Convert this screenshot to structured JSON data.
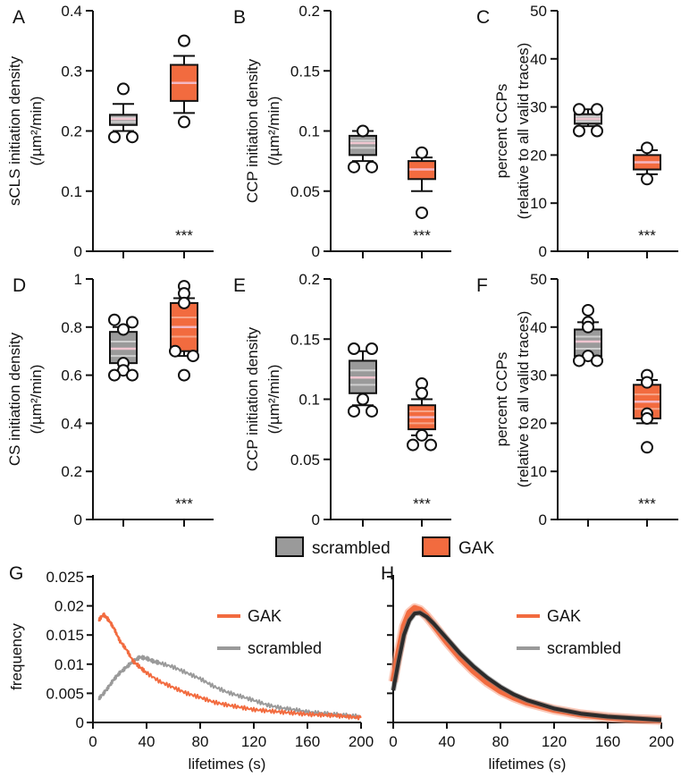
{
  "colors": {
    "scrambled_fill": "#9a9a9a",
    "scrambled_dark": "#2b2b2b",
    "scrambled_light": "#cfcfcf",
    "gak_fill": "#f26b3f",
    "gak_light": "#f8a58a",
    "gak_median": "#f4b8c3",
    "scr_median": "#f0c6d0"
  },
  "legend": {
    "scrambled": "scrambled",
    "gak": "GAK"
  },
  "chart_data": [
    {
      "id": "A",
      "type": "box",
      "panel_label": "A",
      "ylabel_lines": [
        "sCLS initiation density",
        "(/µm²/min)"
      ],
      "ylim": [
        0,
        0.4
      ],
      "yticks": [
        0,
        0.1,
        0.2,
        0.3,
        0.4
      ],
      "ytick_labels": [
        "0",
        "0.1",
        "0.2",
        "0.3",
        "0.4"
      ],
      "significance": "***",
      "groups": [
        {
          "name": "scrambled",
          "q1": 0.21,
          "median": 0.22,
          "q3": 0.227,
          "whisker_low": 0.2,
          "whisker_high": 0.245,
          "outliers": [
            0.27,
            0.19,
            0.19
          ],
          "inner_lines": [
            0.215,
            0.222
          ]
        },
        {
          "name": "GAK",
          "q1": 0.25,
          "median": 0.28,
          "q3": 0.31,
          "whisker_low": 0.23,
          "whisker_high": 0.325,
          "outliers": [
            0.35,
            0.215
          ],
          "inner_lines": []
        }
      ]
    },
    {
      "id": "B",
      "type": "box",
      "panel_label": "B",
      "ylabel_lines": [
        "CCP initiation density",
        "(/µm²/min)"
      ],
      "ylim": [
        0,
        0.2
      ],
      "yticks": [
        0,
        0.05,
        0.1,
        0.15,
        0.2
      ],
      "ytick_labels": [
        "0",
        "0.05",
        "0.1",
        "0.15",
        "0.2"
      ],
      "significance": "***",
      "groups": [
        {
          "name": "scrambled",
          "q1": 0.08,
          "median": 0.09,
          "q3": 0.096,
          "whisker_low": 0.075,
          "whisker_high": 0.1,
          "outliers": [
            0.1,
            0.07,
            0.07
          ],
          "inner_lines": [
            0.086,
            0.092
          ]
        },
        {
          "name": "GAK",
          "q1": 0.06,
          "median": 0.068,
          "q3": 0.075,
          "whisker_low": 0.05,
          "whisker_high": 0.078,
          "outliers": [
            0.082,
            0.032
          ],
          "inner_lines": []
        }
      ]
    },
    {
      "id": "C",
      "type": "box",
      "panel_label": "C",
      "ylabel_lines": [
        "percent CCPs",
        "(relative to all valid traces)"
      ],
      "ylim": [
        0,
        50
      ],
      "yticks": [
        0,
        10,
        20,
        30,
        40,
        50
      ],
      "ytick_labels": [
        "0",
        "10",
        "20",
        "30",
        "40",
        "50"
      ],
      "significance": "***",
      "groups": [
        {
          "name": "scrambled",
          "q1": 26.5,
          "median": 27.5,
          "q3": 28.5,
          "whisker_low": 26,
          "whisker_high": 29.5,
          "outliers": [
            29.5,
            29.5,
            25,
            25
          ],
          "inner_lines": [
            27,
            28
          ]
        },
        {
          "name": "GAK",
          "q1": 17,
          "median": 18.5,
          "q3": 20,
          "whisker_low": 16,
          "whisker_high": 21,
          "outliers": [
            21.5,
            15
          ],
          "inner_lines": []
        }
      ]
    },
    {
      "id": "D",
      "type": "box",
      "panel_label": "D",
      "ylabel_lines": [
        "CS initiation density",
        "(/µm²/min)"
      ],
      "ylim": [
        0,
        1
      ],
      "yticks": [
        0,
        0.2,
        0.4,
        0.6,
        0.8,
        1
      ],
      "ytick_labels": [
        "0",
        "0.2",
        "0.4",
        "0.6",
        "0.8",
        "1"
      ],
      "significance": "***",
      "groups": [
        {
          "name": "scrambled",
          "q1": 0.65,
          "median": 0.71,
          "q3": 0.78,
          "whisker_low": 0.61,
          "whisker_high": 0.8,
          "outliers": [
            0.83,
            0.82,
            0.79,
            0.65,
            0.62,
            0.6,
            0.6
          ],
          "inner_lines": [
            0.68,
            0.74
          ]
        },
        {
          "name": "GAK",
          "q1": 0.7,
          "median": 0.8,
          "q3": 0.9,
          "whisker_low": 0.68,
          "whisker_high": 0.92,
          "outliers": [
            0.97,
            0.94,
            0.9,
            0.7,
            0.68,
            0.6
          ],
          "inner_lines": [
            0.76,
            0.84
          ]
        }
      ]
    },
    {
      "id": "E",
      "type": "box",
      "panel_label": "E",
      "ylabel_lines": [
        "CCP initiation density",
        "(/µm²/min)"
      ],
      "ylim": [
        0,
        0.2
      ],
      "yticks": [
        0,
        0.05,
        0.1,
        0.15,
        0.2
      ],
      "ytick_labels": [
        "0",
        "0.05",
        "0.1",
        "0.15",
        "0.2"
      ],
      "significance": "***",
      "groups": [
        {
          "name": "scrambled",
          "q1": 0.105,
          "median": 0.118,
          "q3": 0.132,
          "whisker_low": 0.095,
          "whisker_high": 0.14,
          "outliers": [
            0.142,
            0.142,
            0.1,
            0.09,
            0.09
          ],
          "inner_lines": [
            0.112,
            0.124
          ]
        },
        {
          "name": "GAK",
          "q1": 0.075,
          "median": 0.085,
          "q3": 0.095,
          "whisker_low": 0.07,
          "whisker_high": 0.1,
          "outliers": [
            0.113,
            0.105,
            0.07,
            0.062,
            0.062
          ],
          "inner_lines": [
            0.08,
            0.09
          ]
        }
      ]
    },
    {
      "id": "F",
      "type": "box",
      "panel_label": "F",
      "ylabel_lines": [
        "percent CCPs",
        "(relative to all valid traces)"
      ],
      "ylim": [
        0,
        50
      ],
      "yticks": [
        0,
        10,
        20,
        30,
        40,
        50
      ],
      "ytick_labels": [
        "0",
        "10",
        "20",
        "30",
        "40",
        "50"
      ],
      "significance": "***",
      "groups": [
        {
          "name": "scrambled",
          "q1": 34,
          "median": 37,
          "q3": 39.5,
          "whisker_low": 33,
          "whisker_high": 41,
          "outliers": [
            43.5,
            41,
            40,
            34,
            33,
            33
          ],
          "inner_lines": [
            35.5,
            38
          ]
        },
        {
          "name": "GAK",
          "q1": 21,
          "median": 24.5,
          "q3": 28,
          "whisker_low": 20,
          "whisker_high": 29,
          "outliers": [
            30,
            28.5,
            22,
            21,
            15
          ],
          "inner_lines": [
            23,
            26
          ]
        }
      ]
    },
    {
      "id": "G",
      "type": "line",
      "panel_label": "G",
      "ylabel": "frequency",
      "xlabel": "lifetimes (s)",
      "xlim": [
        0,
        200
      ],
      "ylim": [
        0,
        0.025
      ],
      "xticks": [
        0,
        40,
        80,
        120,
        160,
        200
      ],
      "xtick_labels": [
        "0",
        "40",
        "80",
        "120",
        "160",
        "200"
      ],
      "yticks": [
        0,
        0.005,
        0.01,
        0.015,
        0.02,
        0.025
      ],
      "ytick_labels": [
        "0",
        "0.005",
        "0.01",
        "0.015",
        "0.02",
        "0.025"
      ],
      "legend": [
        "GAK",
        "scrambled"
      ],
      "series": [
        {
          "name": "GAK",
          "x": [
            4,
            8,
            12,
            16,
            20,
            25,
            30,
            35,
            40,
            50,
            60,
            70,
            80,
            90,
            100,
            110,
            120,
            130,
            140,
            150,
            160,
            170,
            180,
            190,
            200
          ],
          "y": [
            0.0175,
            0.0185,
            0.0175,
            0.016,
            0.014,
            0.0125,
            0.0105,
            0.0095,
            0.0085,
            0.007,
            0.006,
            0.005,
            0.0043,
            0.0035,
            0.003,
            0.0026,
            0.0022,
            0.002,
            0.0018,
            0.0016,
            0.0014,
            0.0013,
            0.0012,
            0.001,
            0.0008
          ]
        },
        {
          "name": "scrambled",
          "x": [
            4,
            8,
            12,
            16,
            20,
            25,
            30,
            35,
            40,
            45,
            50,
            60,
            70,
            80,
            90,
            100,
            110,
            120,
            130,
            140,
            150,
            160,
            170,
            180,
            190,
            200
          ],
          "y": [
            0.004,
            0.005,
            0.0062,
            0.0075,
            0.0085,
            0.0095,
            0.0105,
            0.0112,
            0.011,
            0.0105,
            0.0102,
            0.0095,
            0.0085,
            0.0075,
            0.0062,
            0.0052,
            0.0045,
            0.0038,
            0.003,
            0.0025,
            0.0022,
            0.0018,
            0.0016,
            0.0014,
            0.0012,
            0.001
          ]
        }
      ]
    },
    {
      "id": "H",
      "type": "line",
      "panel_label": "H",
      "xlabel": "lifetimes (s)",
      "xlim": [
        0,
        200
      ],
      "ylim": [
        0,
        0.025
      ],
      "xticks": [
        0,
        40,
        80,
        120,
        160,
        200
      ],
      "xtick_labels": [
        "0",
        "40",
        "80",
        "120",
        "160",
        "200"
      ],
      "yticks": [
        0,
        0.005,
        0.01,
        0.015,
        0.02,
        0.025
      ],
      "legend": [
        "GAK",
        "scrambled"
      ],
      "series": [
        {
          "name": "GAK",
          "x": [
            0,
            4,
            8,
            12,
            16,
            20,
            25,
            30,
            40,
            50,
            60,
            70,
            80,
            90,
            100,
            120,
            140,
            160,
            180,
            200
          ],
          "y": [
            0.007,
            0.012,
            0.0165,
            0.0188,
            0.0196,
            0.0193,
            0.0182,
            0.0168,
            0.0138,
            0.0111,
            0.0088,
            0.0069,
            0.0054,
            0.0043,
            0.0034,
            0.0022,
            0.0014,
            0.0009,
            0.0006,
            0.0004
          ]
        },
        {
          "name": "scrambled",
          "x": [
            0,
            4,
            8,
            12,
            16,
            20,
            25,
            30,
            40,
            50,
            60,
            70,
            80,
            90,
            100,
            120,
            140,
            160,
            180,
            200
          ],
          "y": [
            0.0055,
            0.0105,
            0.015,
            0.0175,
            0.0187,
            0.0188,
            0.0181,
            0.017,
            0.0144,
            0.0118,
            0.0096,
            0.0077,
            0.0061,
            0.0048,
            0.0038,
            0.0024,
            0.0015,
            0.001,
            0.0007,
            0.0004
          ]
        }
      ]
    }
  ]
}
